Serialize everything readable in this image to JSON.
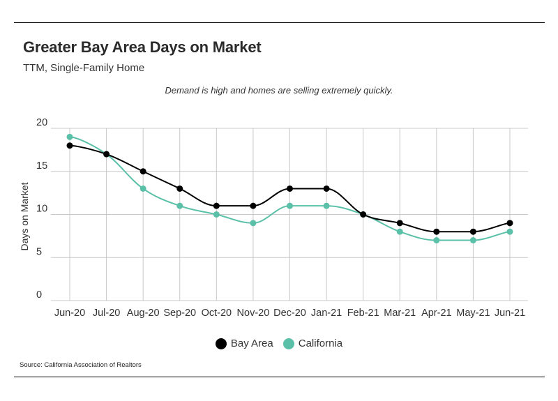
{
  "header": {
    "title": "Greater Bay Area Days on Market",
    "subtitle": "TTM, Single-Family Home",
    "annotation": "Demand is high and homes are selling extremely quickly."
  },
  "footer": {
    "source": "Source:  California Association of Realtors"
  },
  "colors": {
    "bay_area": "#000000",
    "california": "#5bc0a8",
    "grid": "#c8c8c8"
  },
  "chart_data": {
    "type": "line",
    "title": "Greater Bay Area Days on Market",
    "subtitle": "TTM, Single-Family Home",
    "xlabel": "",
    "ylabel": "Days on Market",
    "ylim": [
      0,
      20
    ],
    "yticks": [
      0,
      5,
      10,
      15,
      20
    ],
    "grid": true,
    "legend_position": "bottom",
    "categories": [
      "Jun-20",
      "Jul-20",
      "Aug-20",
      "Sep-20",
      "Oct-20",
      "Nov-20",
      "Dec-20",
      "Jan-21",
      "Feb-21",
      "Mar-21",
      "Apr-21",
      "May-21",
      "Jun-21"
    ],
    "series": [
      {
        "name": "Bay Area",
        "color": "#000000",
        "values": [
          18,
          17,
          15,
          13,
          11,
          11,
          13,
          13,
          10,
          9,
          8,
          8,
          9
        ]
      },
      {
        "name": "California",
        "color": "#5bc0a8",
        "values": [
          19,
          17,
          13,
          11,
          10,
          9,
          11,
          11,
          10,
          8,
          7,
          7,
          8
        ]
      }
    ]
  }
}
